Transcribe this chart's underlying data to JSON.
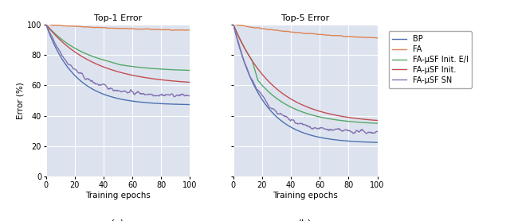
{
  "title_left": "Top-1 Error",
  "title_right": "Top-5 Error",
  "xlabel": "Training epochs",
  "ylabel": "Error (%)",
  "xlim": [
    0,
    100
  ],
  "ylim": [
    0,
    100
  ],
  "xticks": [
    0,
    20,
    40,
    60,
    80,
    100
  ],
  "yticks": [
    0,
    20,
    40,
    60,
    80,
    100
  ],
  "legend_labels": [
    "BP",
    "FA",
    "FA-μSF Init. E/I",
    "FA-μSF Init.",
    "FA-μSF SN"
  ],
  "colors": {
    "BP": "#4c72b0",
    "FA": "#dd8452",
    "FA_uSF_EI": "#55a868",
    "FA_uSF_Init": "#c44e52",
    "FA_uSF_SN": "#8172b2"
  },
  "background_color": "#dde3ee",
  "linewidth": 1.0,
  "top1": {
    "BP": {
      "start": 100,
      "end": 47,
      "rate": 5.0,
      "noise": 0.0
    },
    "FA": {
      "start": 100,
      "end": 95,
      "rate": 1.5,
      "noise": 0.3
    },
    "FA_uSF_EI": {
      "start": 100,
      "end": 69,
      "rate": 3.5,
      "noise": 0.0,
      "plateau": true
    },
    "FA_uSF_Init": {
      "start": 100,
      "end": 60,
      "rate": 3.0,
      "noise": 0.0
    },
    "FA_uSF_SN": {
      "start": 100,
      "end": 53,
      "rate": 5.0,
      "noise": 1.5
    }
  },
  "top5": {
    "BP": {
      "start": 100,
      "end": 22,
      "rate": 5.0,
      "noise": 0.0
    },
    "FA": {
      "start": 100,
      "end": 87,
      "rate": 1.2,
      "noise": 0.3
    },
    "FA_uSF_EI": {
      "start": 100,
      "end": 42,
      "rate": 4.0,
      "noise": 0.0,
      "step": true
    },
    "FA_uSF_Init": {
      "start": 100,
      "end": 35,
      "rate": 3.5,
      "noise": 0.0
    },
    "FA_uSF_SN": {
      "start": 100,
      "end": 29,
      "rate": 5.5,
      "noise": 1.5
    }
  }
}
